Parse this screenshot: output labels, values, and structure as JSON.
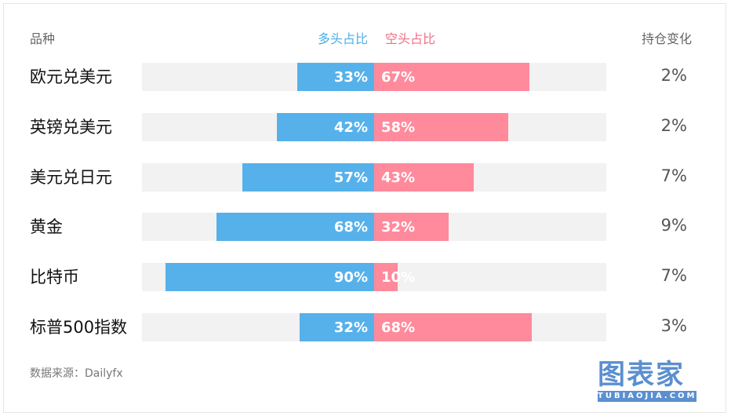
{
  "chart_data": {
    "type": "bar",
    "headers": {
      "category": "品种",
      "long": "多头占比",
      "short": "空头占比",
      "change": "持仓变化"
    },
    "categories": [
      "欧元兑美元",
      "英镑兑美元",
      "美元兑日元",
      "黄金",
      "比特币",
      "标普500指数"
    ],
    "series": [
      {
        "name": "多头占比",
        "values": [
          33,
          42,
          57,
          68,
          90,
          32
        ],
        "labels": [
          "33%",
          "42%",
          "57%",
          "68%",
          "90%",
          "32%"
        ]
      },
      {
        "name": "空头占比",
        "values": [
          67,
          58,
          43,
          32,
          10,
          68
        ],
        "labels": [
          "67%",
          "58%",
          "43%",
          "32%",
          "10%",
          "68%"
        ]
      }
    ],
    "change": [
      "2%",
      "2%",
      "7%",
      "9%",
      "7%",
      "3%"
    ],
    "xlim": [
      -100,
      100
    ],
    "colors": {
      "long": "#56b1ea",
      "short": "#ff8a9c"
    },
    "source": "数据来源：Dailyfx"
  },
  "logo": {
    "main": "图表家",
    "sub": "TUBIAOJIA.COM"
  }
}
